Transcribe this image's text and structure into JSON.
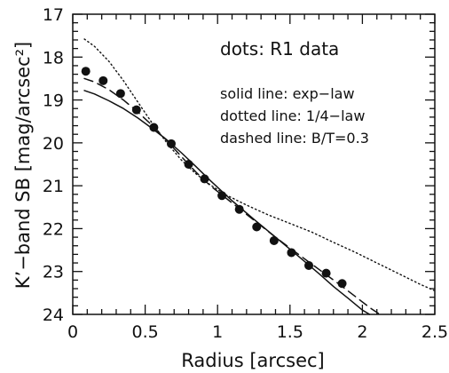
{
  "chart_data": {
    "type": "line",
    "xlabel": "Radius [arcsec]",
    "ylabel": "K’−band SB [mag/arcsec²]",
    "xlim": [
      0,
      2.5
    ],
    "ylim": [
      24,
      17
    ],
    "y_inverted": true,
    "grid": false,
    "x_ticks": [
      0,
      0.5,
      1,
      1.5,
      2,
      2.5
    ],
    "x_tick_labels": [
      "0",
      "0.5",
      "1",
      "1.5",
      "2",
      "2.5"
    ],
    "y_ticks": [
      17,
      18,
      19,
      20,
      21,
      22,
      23,
      24
    ],
    "y_tick_labels": [
      "17",
      "18",
      "19",
      "20",
      "21",
      "22",
      "23",
      "24"
    ],
    "annotations": [
      "dots: R1 data",
      "solid line:  exp−law",
      "dotted line: 1/4−law",
      "dashed line: B/T=0.3"
    ],
    "series": [
      {
        "style": "dots",
        "x": [
          0.09,
          0.21,
          0.33,
          0.44,
          0.56,
          0.68,
          0.8,
          0.91,
          1.03,
          1.15,
          1.27,
          1.39,
          1.51,
          1.63,
          1.75,
          1.86
        ],
        "y": [
          18.33,
          18.55,
          18.85,
          19.23,
          19.64,
          20.02,
          20.5,
          20.84,
          21.23,
          21.55,
          21.96,
          22.28,
          22.56,
          22.86,
          23.04,
          23.28
        ]
      },
      {
        "style": "solid",
        "x": [
          0.08,
          0.15,
          0.25,
          0.35,
          0.45,
          0.55,
          0.65,
          0.75,
          0.85,
          0.95,
          1.1,
          1.25,
          1.4,
          1.55,
          1.7,
          1.8,
          1.9,
          2.0,
          2.05
        ],
        "y": [
          18.78,
          18.86,
          19.02,
          19.2,
          19.42,
          19.67,
          19.93,
          20.23,
          20.55,
          20.88,
          21.35,
          21.78,
          22.2,
          22.62,
          23.05,
          23.35,
          23.62,
          23.9,
          24.0
        ]
      },
      {
        "style": "dotted",
        "x": [
          0.08,
          0.15,
          0.25,
          0.35,
          0.45,
          0.55,
          0.65,
          0.75,
          0.85,
          0.95,
          1.05,
          1.2,
          1.35,
          1.5,
          1.65,
          1.8,
          1.95,
          2.1,
          2.25,
          2.4,
          2.5
        ],
        "y": [
          17.58,
          17.75,
          18.1,
          18.55,
          19.05,
          19.55,
          20.0,
          20.4,
          20.72,
          20.98,
          21.2,
          21.45,
          21.68,
          21.88,
          22.08,
          22.32,
          22.55,
          22.8,
          23.05,
          23.3,
          23.45
        ]
      },
      {
        "style": "dashed",
        "x": [
          0.08,
          0.15,
          0.25,
          0.35,
          0.45,
          0.55,
          0.65,
          0.75,
          0.85,
          0.95,
          1.1,
          1.25,
          1.4,
          1.55,
          1.7,
          1.85,
          1.95,
          2.05,
          2.12
        ],
        "y": [
          18.5,
          18.58,
          18.76,
          19.0,
          19.28,
          19.6,
          19.95,
          20.32,
          20.68,
          21.0,
          21.4,
          21.8,
          22.2,
          22.58,
          22.95,
          23.32,
          23.58,
          23.84,
          24.0
        ]
      }
    ]
  }
}
